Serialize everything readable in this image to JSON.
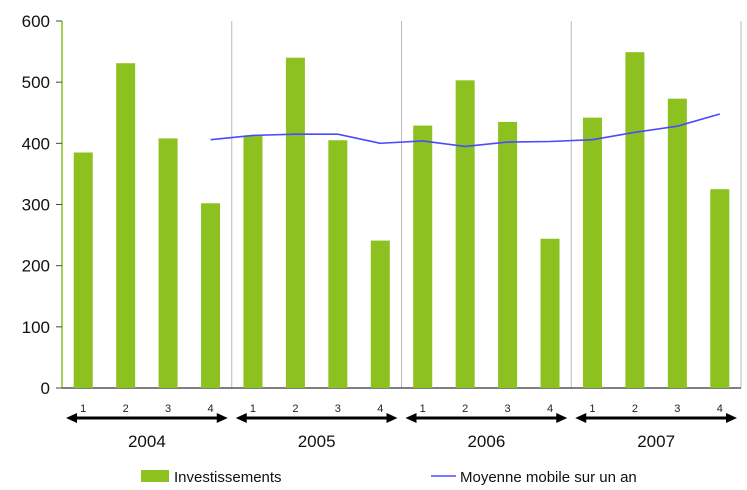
{
  "chart_data": {
    "type": "bar",
    "title": "",
    "xlabel": "",
    "ylabel": "",
    "ylim": [
      0,
      600
    ],
    "yticks": [
      0,
      100,
      200,
      300,
      400,
      500,
      600
    ],
    "grid": "vertical lines between years",
    "legend": "bottom",
    "groups": [
      {
        "year": "2004",
        "quarters": [
          "1",
          "2",
          "3",
          "4"
        ]
      },
      {
        "year": "2005",
        "quarters": [
          "1",
          "2",
          "3",
          "4"
        ]
      },
      {
        "year": "2006",
        "quarters": [
          "1",
          "2",
          "3",
          "4"
        ]
      },
      {
        "year": "2007",
        "quarters": [
          "1",
          "2",
          "3",
          "4"
        ]
      }
    ],
    "series": [
      {
        "name": "Investissements",
        "type": "bar",
        "color": "#8cc11f",
        "values": [
          385,
          531,
          408,
          302,
          413,
          540,
          405,
          241,
          429,
          503,
          435,
          244,
          442,
          549,
          473,
          325
        ]
      },
      {
        "name": "Moyenne mobile sur un an",
        "type": "line",
        "color": "#4a4aff",
        "values": [
          null,
          null,
          null,
          406,
          413,
          415,
          415,
          400,
          404,
          395,
          402,
          403,
          406,
          418,
          428,
          448
        ]
      }
    ]
  }
}
